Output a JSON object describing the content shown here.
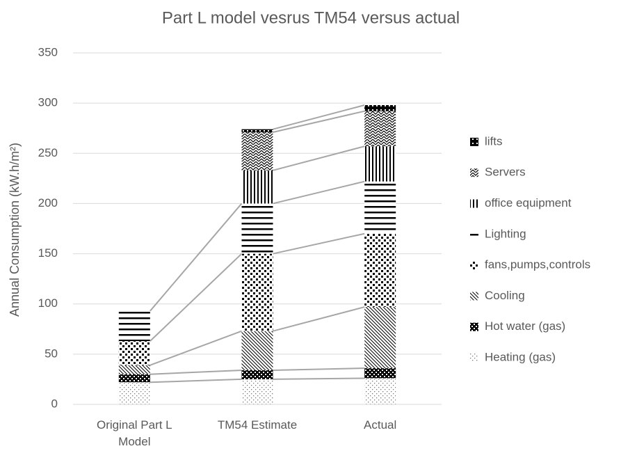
{
  "chart_data": {
    "type": "stacked_bar",
    "title": "Part L model vesrus TM54 versus actual",
    "y_label": "Annual Consumption (kW.h/m²)",
    "categories": [
      "Original Part L Model",
      "TM54 Estimate",
      "Actual"
    ],
    "series": [
      {
        "name": "Heating (gas)",
        "color": "#000000",
        "pattern": "dots-sparse",
        "values": [
          22,
          25,
          26
        ]
      },
      {
        "name": "Hot water (gas)",
        "color": "#000000",
        "pattern": "checker",
        "values": [
          8,
          9,
          10
        ]
      },
      {
        "name": "Cooling",
        "color": "#000000",
        "pattern": "diag",
        "values": [
          9,
          39,
          61
        ]
      },
      {
        "name": "fans,pumps,controls",
        "color": "#000000",
        "pattern": "dots-large",
        "values": [
          24,
          77,
          73
        ]
      },
      {
        "name": "Lighting",
        "color": "#000000",
        "pattern": "hlines",
        "values": [
          30,
          50,
          52
        ]
      },
      {
        "name": "office equipment",
        "color": "#000000",
        "pattern": "vlines",
        "values": [
          0,
          33,
          35
        ]
      },
      {
        "name": "Servers",
        "color": "#000000",
        "pattern": "zigzag",
        "values": [
          0,
          38,
          35
        ]
      },
      {
        "name": "lifts",
        "color": "#000000",
        "pattern": "solid-dots",
        "values": [
          0,
          3,
          6
        ]
      }
    ],
    "ylim": [
      0,
      350
    ],
    "yticks": [
      0,
      50,
      100,
      150,
      200,
      250,
      300,
      350
    ],
    "grid": true,
    "legend": "right",
    "connector_color": "#a6a6a6"
  }
}
